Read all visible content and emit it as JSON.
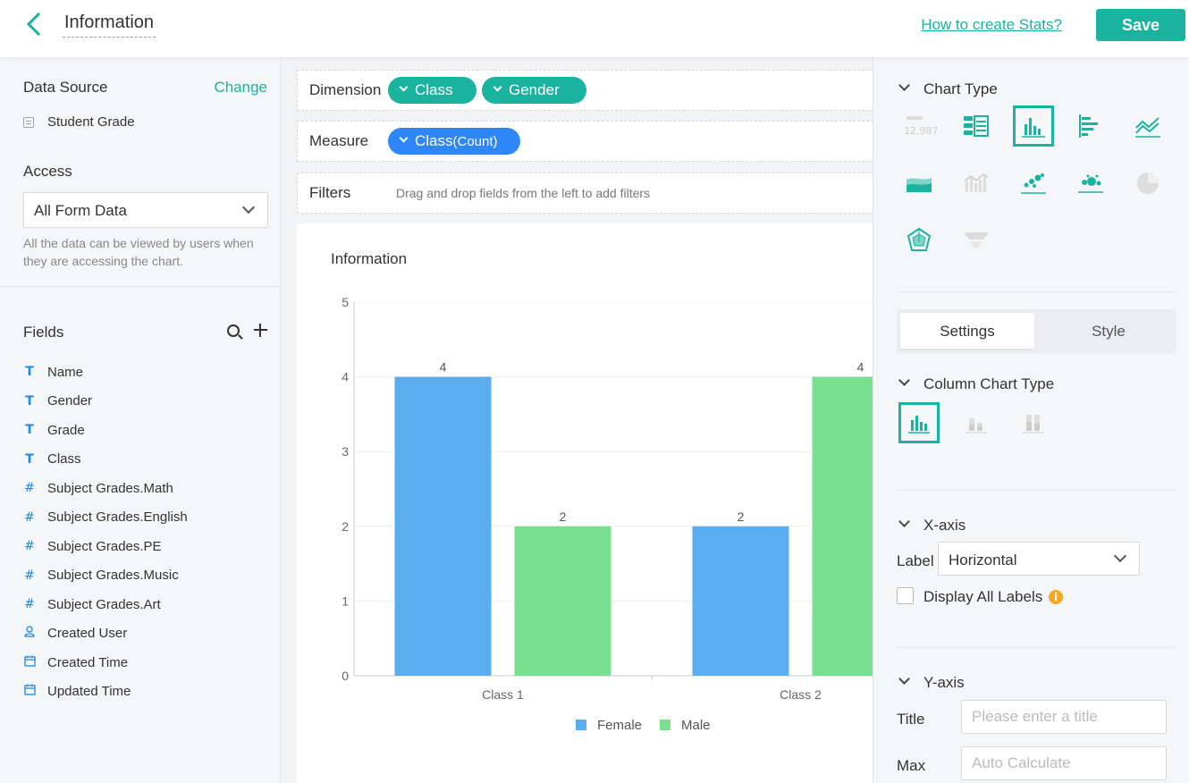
{
  "header": {
    "title": "Information",
    "help_link": "How to create Stats?",
    "save_label": "Save"
  },
  "left": {
    "data_source_title": "Data Source",
    "change_label": "Change",
    "data_source_item": "Student Grade",
    "access_title": "Access",
    "access_value": "All Form Data",
    "access_desc": "All the data can be viewed by users when they are accessing the chart.",
    "fields_title": "Fields",
    "fields": [
      {
        "label": "Name",
        "icon": "text-icon"
      },
      {
        "label": "Gender",
        "icon": "text-icon"
      },
      {
        "label": "Grade",
        "icon": "text-icon"
      },
      {
        "label": "Class",
        "icon": "text-icon"
      },
      {
        "label": "Subject Grades.Math",
        "icon": "number-icon"
      },
      {
        "label": "Subject Grades.English",
        "icon": "number-icon"
      },
      {
        "label": "Subject Grades.PE",
        "icon": "number-icon"
      },
      {
        "label": "Subject Grades.Music",
        "icon": "number-icon"
      },
      {
        "label": "Subject Grades.Art",
        "icon": "number-icon"
      },
      {
        "label": "Created User",
        "icon": "user-icon"
      },
      {
        "label": "Created Time",
        "icon": "calendar-icon"
      },
      {
        "label": "Updated Time",
        "icon": "calendar-icon"
      }
    ]
  },
  "builder": {
    "dimension_label": "Dimension",
    "dimensions": [
      "Class",
      "Gender"
    ],
    "measure_label": "Measure",
    "measure_name": "Class",
    "measure_agg": "(Count)",
    "filters_label": "Filters",
    "filters_hint": "Drag and drop fields from the left to add filters"
  },
  "chart_data": {
    "type": "bar",
    "title": "Information",
    "categories": [
      "Class 1",
      "Class 2"
    ],
    "series": [
      {
        "name": "Female",
        "values": [
          4,
          2
        ],
        "color": "#5aaef0"
      },
      {
        "name": "Male",
        "values": [
          2,
          4
        ],
        "color": "#79e08f"
      }
    ],
    "ylim": [
      0,
      5
    ],
    "yticks": [
      "0",
      "1",
      "2",
      "3",
      "4",
      "5"
    ],
    "grid": true,
    "legend": "bottom-center"
  },
  "right": {
    "chart_type_title": "Chart Type",
    "tabs": {
      "settings": "Settings",
      "style": "Style"
    },
    "column_chart_type_title": "Column Chart Type",
    "xaxis_title": "X-axis",
    "xaxis_label_label": "Label",
    "xaxis_label_value": "Horizontal",
    "display_all_labels": "Display All Labels",
    "yaxis_title": "Y-axis",
    "y_title_label": "Title",
    "y_title_placeholder": "Please enter a title",
    "y_max_label": "Max",
    "y_max_placeholder": "Auto Calculate",
    "number_icon_text": "12,987",
    "accent": "#1ab3a0"
  }
}
